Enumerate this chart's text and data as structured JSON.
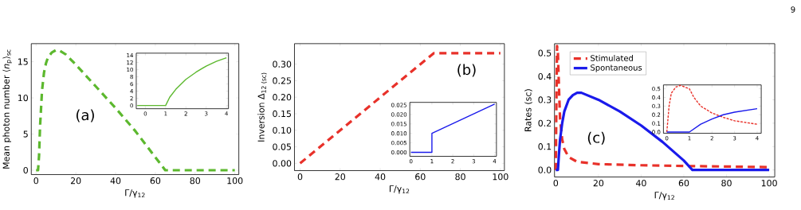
{
  "chart_data": [
    {
      "type": "line",
      "xlabel": "Γ/γ$_{12}$",
      "ylabel": "Mean photon number ⟨*n*$_{p}$⟩$_{sc}$",
      "xlim": [
        -2.4,
        102
      ],
      "ylim": [
        -0.6,
        17.5
      ],
      "xticks": [
        0,
        20,
        40,
        60,
        80,
        100
      ],
      "yticks": [
        0,
        5,
        10,
        15
      ],
      "annotations": [
        "(a)"
      ],
      "series": [
        {
          "color": "#5cb82e",
          "line_style": "dashed",
          "x": [
            0,
            1,
            1.5,
            2,
            3,
            4,
            5,
            6,
            8,
            10,
            12,
            15,
            20,
            30,
            40,
            50,
            60,
            65,
            100
          ],
          "values": [
            0,
            0,
            2,
            6,
            11,
            13.5,
            14.8,
            15.6,
            16.3,
            16.6,
            16.5,
            16,
            14.6,
            11.6,
            8.6,
            5.4,
            1.8,
            0,
            0
          ]
        }
      ]
    },
    {
      "type": "line",
      "xlim": [
        -0.45,
        4.1
      ],
      "ylim": [
        -0.9,
        14.6
      ],
      "xticks": [
        0,
        1,
        2,
        3,
        4
      ],
      "yticks": [
        0,
        2,
        4,
        6,
        8,
        10,
        12,
        14
      ],
      "series": [
        {
          "color": "#5cb82e",
          "line_style": "solid",
          "x": [
            -0.4,
            1,
            1.2,
            1.5,
            2,
            2.5,
            3,
            3.5,
            4
          ],
          "values": [
            0,
            0,
            2.3,
            4.5,
            7.3,
            9.3,
            11,
            12.3,
            13.3
          ]
        }
      ]
    },
    {
      "type": "line",
      "xlabel": "Γ/γ$_{12}$",
      "ylabel": "Inversion Δ$_{12 (sc)}$",
      "xlim": [
        -2.8,
        102
      ],
      "ylim": [
        -0.022,
        0.362
      ],
      "xticks": [
        0,
        20,
        40,
        60,
        80,
        100
      ],
      "yticks": [
        {
          "value": 0,
          "label": "0.00"
        },
        {
          "value": 0.05,
          "label": "0.05"
        },
        {
          "value": 0.1,
          "label": "0.10"
        },
        {
          "value": 0.15,
          "label": "0.15"
        },
        {
          "value": 0.2,
          "label": "0.20"
        },
        {
          "value": 0.25,
          "label": "0.25"
        },
        {
          "value": 0.3,
          "label": "0.30"
        }
      ],
      "annotations": [
        "(b)"
      ],
      "series": [
        {
          "color": "#e8312a",
          "line_style": "dashed",
          "x": [
            0,
            66.7,
            100
          ],
          "values": [
            0,
            0.333,
            0.333
          ]
        }
      ]
    },
    {
      "type": "line",
      "xlim": [
        -0.06,
        4.09
      ],
      "ylim": [
        -0.0021,
        0.0264
      ],
      "xticks": [
        0,
        1,
        2,
        3,
        4
      ],
      "yticks": [
        {
          "value": 0,
          "label": "0.000"
        },
        {
          "value": 0.005,
          "label": "0.005"
        },
        {
          "value": 0.01,
          "label": "0.010"
        },
        {
          "value": 0.015,
          "label": "0.015"
        },
        {
          "value": 0.02,
          "label": "0.020"
        },
        {
          "value": 0.025,
          "label": "0.025"
        }
      ],
      "series": [
        {
          "color": "#1a1aeb",
          "line_style": "solid",
          "x": [
            0,
            1,
            1,
            4
          ],
          "values": [
            0,
            0,
            0.01,
            0.0255
          ]
        }
      ]
    },
    {
      "type": "line",
      "xlabel": "Γ/γ$_{12}$",
      "ylabel": "Rates (sc)",
      "xlim": [
        -0.6,
        102.6
      ],
      "ylim": [
        -0.03,
        0.54
      ],
      "xticks": [
        0,
        20,
        40,
        60,
        80,
        100
      ],
      "yticks": [
        {
          "value": 0,
          "label": "0.0"
        },
        0.1,
        0.2,
        0.3,
        0.4,
        0.5
      ],
      "legend": "top left",
      "annotations": [
        "(c)",
        "9"
      ],
      "series": [
        {
          "name": "Stimulated",
          "color": "#e8312a",
          "line_style": "dashed",
          "x": [
            0,
            0.3,
            0.6,
            1,
            1.5,
            2,
            3,
            4,
            6,
            10,
            20,
            40,
            60,
            100
          ],
          "values": [
            0,
            0.3,
            0.53,
            0.5,
            0.35,
            0.22,
            0.13,
            0.09,
            0.055,
            0.035,
            0.025,
            0.02,
            0.017,
            0.012
          ]
        },
        {
          "name": "Spontaneous",
          "color": "#1a1aeb",
          "line_style": "solid",
          "x": [
            0,
            1,
            1.5,
            2,
            3,
            4,
            6,
            8,
            10,
            12,
            20,
            30,
            40,
            50,
            60,
            64,
            100
          ],
          "values": [
            0,
            0,
            0.07,
            0.13,
            0.2,
            0.25,
            0.3,
            0.32,
            0.33,
            0.33,
            0.3,
            0.25,
            0.19,
            0.12,
            0.04,
            0,
            0
          ]
        }
      ]
    },
    {
      "type": "line",
      "xlim": [
        -0.15,
        4.18
      ],
      "ylim": [
        -0.015,
        0.545
      ],
      "xticks": [
        0,
        1,
        2,
        3,
        4
      ],
      "yticks": [
        {
          "value": 0,
          "label": "0.0"
        },
        0.1,
        0.2,
        0.3,
        0.4,
        0.5
      ],
      "series": [
        {
          "color": "#e8312a",
          "line_style": "dashed",
          "x": [
            0,
            0.1,
            0.2,
            0.4,
            0.6,
            0.8,
            1,
            1.2,
            1.5,
            2,
            2.5,
            3,
            3.5,
            4
          ],
          "values": [
            0,
            0.3,
            0.45,
            0.52,
            0.54,
            0.52,
            0.5,
            0.4,
            0.3,
            0.22,
            0.17,
            0.13,
            0.11,
            0.09
          ]
        },
        {
          "color": "#1a1aeb",
          "line_style": "solid",
          "x": [
            0,
            1,
            1.5,
            2,
            2.5,
            3,
            4
          ],
          "values": [
            0,
            0,
            0.09,
            0.15,
            0.2,
            0.23,
            0.27
          ]
        }
      ]
    }
  ]
}
